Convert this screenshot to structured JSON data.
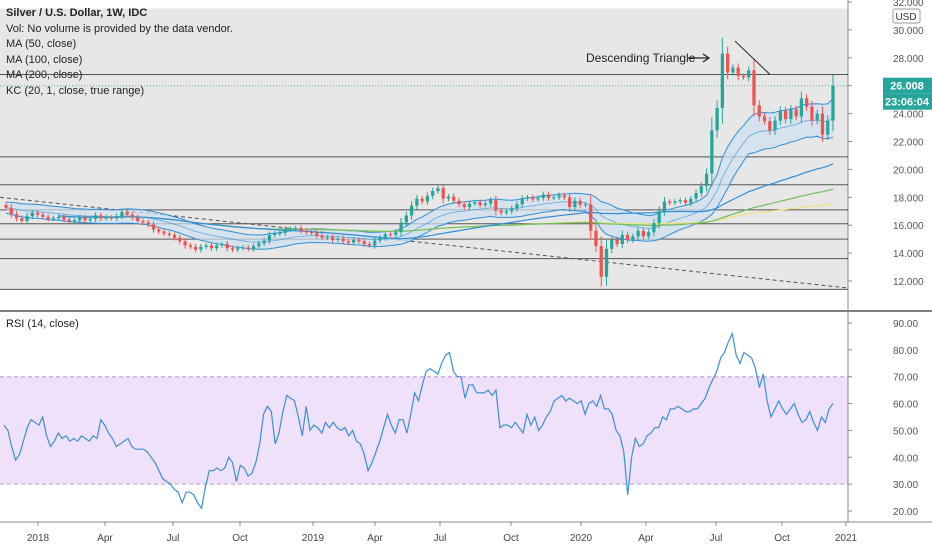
{
  "header": {
    "title": "Silver / U.S. Dollar, 1W, IDC",
    "studies": [
      "Vol: No volume is provided by the data vendor.",
      "MA (50, close)",
      "MA (100, close)",
      "MA (200, close)",
      "KC (20, 1, close, true range)"
    ]
  },
  "rsi_label": "RSI (14, close)",
  "colors": {
    "price_bg": "#e4e4e4",
    "up": "#26a69a",
    "down": "#ef5350",
    "kc": "#2f8fd8",
    "kc_fill": "#cfe0f0",
    "ma50": "#2f8fd8",
    "ma100": "#6fbf5a",
    "ma200": "#f2e27a",
    "rsi_line": "#3d8fcf",
    "rsi_band": "#efe0fb",
    "price_tag": "#26a69a"
  },
  "chart_data": [
    {
      "type": "candlestick",
      "title": "Silver / U.S. Dollar, 1W, IDC",
      "currency_label": "USD",
      "ylim": [
        11,
        32
      ],
      "y_ticks": [
        12,
        14,
        16,
        18,
        20,
        22,
        24,
        26,
        28,
        30,
        32
      ],
      "y_tick_labels": [
        "12.000",
        "14.000",
        "16.000",
        "18.000",
        "20.000",
        "22.000",
        "24.000",
        "26.000",
        "28.000",
        "30.000",
        "32.000"
      ],
      "x_ticks": [
        "2018",
        "Apr",
        "Jul",
        "Oct",
        "2019",
        "Apr",
        "Jul",
        "Oct",
        "2020",
        "Apr",
        "Jul",
        "Oct",
        "2021"
      ],
      "last_price": "26.008",
      "countdown": "23:06:04",
      "horizontal_levels": [
        11.4,
        13.6,
        15.0,
        16.1,
        17.1,
        18.9,
        20.9,
        26.8
      ],
      "descending_triangle_label": "Descending Triangle",
      "weekly_close": [
        17.25,
        16.8,
        16.5,
        16.3,
        16.65,
        16.9,
        16.75,
        16.6,
        16.45,
        16.5,
        16.6,
        16.4,
        16.3,
        16.35,
        16.55,
        16.35,
        16.45,
        16.7,
        16.5,
        16.55,
        16.5,
        16.65,
        16.95,
        16.75,
        16.55,
        16.3,
        16.2,
        16.05,
        15.7,
        15.55,
        15.4,
        15.3,
        15.1,
        14.85,
        14.55,
        14.45,
        14.25,
        14.45,
        14.55,
        14.35,
        14.55,
        14.65,
        14.35,
        14.25,
        14.35,
        14.4,
        14.3,
        14.5,
        14.7,
        14.9,
        15.3,
        15.4,
        15.45,
        15.7,
        15.75,
        15.8,
        15.6,
        15.5,
        15.45,
        15.25,
        15.1,
        15.15,
        14.95,
        15.05,
        14.85,
        14.75,
        14.95,
        14.85,
        14.65,
        14.55,
        14.9,
        15.1,
        15.35,
        15.3,
        15.5,
        16.2,
        16.7,
        17.4,
        17.9,
        17.7,
        18.1,
        18.45,
        18.65,
        17.9,
        18.05,
        17.75,
        17.5,
        17.3,
        17.55,
        17.65,
        17.45,
        17.55,
        17.8,
        17.05,
        16.9,
        17.0,
        17.2,
        17.5,
        17.9,
        18.0,
        17.85,
        17.95,
        18.2,
        17.95,
        18.0,
        18.15,
        18.0,
        17.3,
        17.75,
        17.45,
        17.5,
        15.6,
        14.5,
        12.3,
        14.3,
        14.95,
        14.65,
        15.3,
        14.95,
        15.2,
        15.6,
        15.2,
        15.5,
        16.15,
        17.0,
        17.7,
        17.6,
        17.7,
        17.8,
        17.6,
        17.9,
        18.3,
        18.8,
        19.7,
        22.8,
        24.4,
        28.3,
        26.95,
        27.3,
        26.7,
        26.6,
        27.1,
        24.6,
        23.8,
        23.45,
        22.8,
        23.5,
        24.2,
        23.6,
        24.3,
        23.8,
        25.1,
        24.5,
        23.5,
        24.0,
        22.5,
        23.5,
        26.0
      ]
    },
    {
      "type": "line",
      "title": "RSI (14, close)",
      "ylim": [
        15,
        92
      ],
      "y_ticks": [
        20,
        30,
        40,
        50,
        60,
        70,
        80,
        90
      ],
      "y_tick_labels": [
        "20.00",
        "30.00",
        "40.00",
        "50.00",
        "60.00",
        "70.00",
        "80.00",
        "90.00"
      ],
      "band": [
        30,
        70
      ],
      "series": [
        {
          "values": [
            52,
            50,
            44,
            39,
            41,
            46,
            51,
            54,
            53,
            52,
            55,
            48,
            44,
            46,
            49,
            47,
            48,
            46,
            47,
            46,
            48,
            47,
            46,
            48,
            47,
            54,
            52,
            49,
            47,
            44,
            45,
            46,
            47,
            44,
            43,
            43,
            43,
            42,
            40,
            38,
            35,
            32,
            31,
            30,
            28,
            27,
            23,
            27,
            27,
            26,
            23,
            21,
            29,
            35,
            35,
            36,
            35,
            36,
            40,
            38,
            31,
            37,
            36,
            33,
            34,
            38,
            45,
            56,
            59,
            57,
            45,
            49,
            57,
            63,
            62,
            61,
            55,
            48,
            59,
            50,
            52,
            51,
            49,
            53,
            51,
            53,
            51,
            50,
            51,
            48,
            50,
            46,
            45,
            41,
            35,
            38,
            42,
            46,
            51,
            56,
            52,
            49,
            54,
            54,
            49,
            56,
            64,
            61,
            67,
            72,
            73,
            72,
            71,
            75,
            78,
            79,
            72,
            70,
            70,
            62,
            67,
            67,
            64,
            64,
            64,
            65,
            63,
            65,
            51,
            52,
            52,
            51,
            53,
            51,
            49,
            56,
            52,
            55,
            50,
            52,
            55,
            57,
            61,
            62,
            63,
            61,
            62,
            61,
            60,
            61,
            56,
            60,
            61,
            59,
            63,
            58,
            58,
            56,
            50,
            48,
            42,
            26,
            40,
            47,
            44,
            45,
            48,
            49,
            51,
            51,
            55,
            54,
            58,
            58,
            59,
            58,
            57,
            57,
            58,
            58,
            60,
            62,
            66,
            69,
            72,
            77,
            79,
            83,
            86,
            78,
            75,
            79,
            78,
            77,
            73,
            66,
            71,
            61,
            55,
            58,
            61,
            58,
            56,
            58,
            60,
            56,
            53,
            54,
            57,
            53,
            50,
            55,
            53,
            58,
            60
          ]
        }
      ]
    }
  ]
}
